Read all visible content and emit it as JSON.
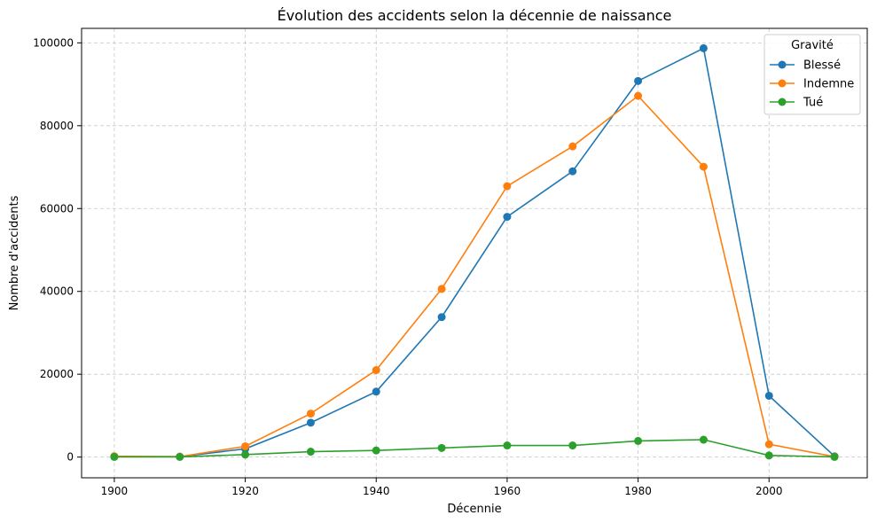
{
  "chart_data": {
    "type": "line",
    "title": "Évolution des accidents selon la décennie de naissance",
    "xlabel": "Décennie",
    "ylabel": "Nombre d'accidents",
    "x": [
      1900,
      1910,
      1920,
      1930,
      1940,
      1950,
      1960,
      1970,
      1980,
      1990,
      2000,
      2010
    ],
    "xlim": [
      1895,
      2015
    ],
    "ylim": [
      -5000,
      103500
    ],
    "xticks": [
      1900,
      1920,
      1940,
      1960,
      1980,
      2000
    ],
    "yticks": [
      0,
      20000,
      40000,
      60000,
      80000,
      100000
    ],
    "grid": true,
    "legend_title": "Gravité",
    "legend_position": "top-right",
    "series": [
      {
        "name": "Blessé",
        "color": "#1f77b4",
        "values": [
          100,
          100,
          2000,
          8300,
          15800,
          33800,
          58000,
          69000,
          90800,
          98700,
          14800,
          200
        ]
      },
      {
        "name": "Indemne",
        "color": "#ff7f0e",
        "values": [
          200,
          100,
          2600,
          10500,
          21000,
          40600,
          65400,
          75000,
          87200,
          70100,
          3100,
          100
        ]
      },
      {
        "name": "Tué",
        "color": "#2ca02c",
        "values": [
          50,
          50,
          600,
          1300,
          1600,
          2200,
          2800,
          2800,
          3900,
          4200,
          400,
          50
        ]
      }
    ]
  }
}
